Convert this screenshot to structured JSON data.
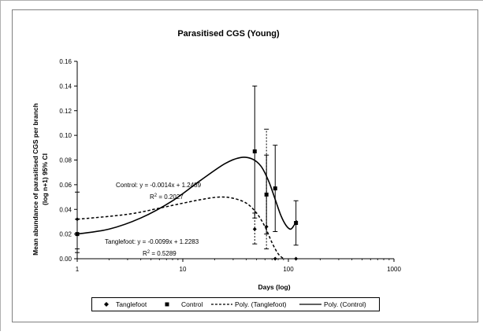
{
  "chart_data": {
    "type": "scatter",
    "title": "Parasitised CGS (Young)",
    "xlabel": "Days (log)",
    "ylabel_line1": "Mean abundance of parasitised CGS per branch",
    "ylabel_line2": "(log n+1) 95% CI",
    "x_scale": "log",
    "xlim": [
      1,
      1000
    ],
    "ylim": [
      0,
      0.16
    ],
    "x_ticks": [
      {
        "value": 1,
        "label": "1"
      },
      {
        "value": 10,
        "label": "10"
      },
      {
        "value": 100,
        "label": "100"
      },
      {
        "value": 1000,
        "label": "1000"
      }
    ],
    "y_ticks": [
      {
        "value": 0,
        "label": "0.00"
      },
      {
        "value": 0.02,
        "label": "0.02"
      },
      {
        "value": 0.04,
        "label": "0.04"
      },
      {
        "value": 0.06,
        "label": "0.06"
      },
      {
        "value": 0.08,
        "label": "0.08"
      },
      {
        "value": 0.1,
        "label": "0.10"
      },
      {
        "value": 0.12,
        "label": "0.12"
      },
      {
        "value": 0.14,
        "label": "0.14"
      },
      {
        "value": 0.16,
        "label": "0.16"
      }
    ],
    "grid": false,
    "legend_position": "bottom",
    "series": [
      {
        "name": "Tanglefoot",
        "marker": "diamond",
        "color": "#000000",
        "points": [
          {
            "x": 1,
            "y": 0.032,
            "lo": 0.008,
            "hi": 0.054
          },
          {
            "x": 48,
            "y": 0.024,
            "lo": 0.012,
            "hi": 0.037
          },
          {
            "x": 62,
            "y": 0.026,
            "lo": 0.008,
            "hi": 0.105
          },
          {
            "x": 75,
            "y": 0.0,
            "lo": 0.0,
            "hi": 0.0
          },
          {
            "x": 118,
            "y": 0.0,
            "lo": 0.0,
            "hi": 0.0
          }
        ]
      },
      {
        "name": "Control",
        "marker": "square",
        "color": "#000000",
        "points": [
          {
            "x": 1,
            "y": 0.02,
            "lo": 0.005,
            "hi": 0.032
          },
          {
            "x": 48,
            "y": 0.087,
            "lo": 0.033,
            "hi": 0.14
          },
          {
            "x": 62,
            "y": 0.052,
            "lo": 0.02,
            "hi": 0.084
          },
          {
            "x": 75,
            "y": 0.057,
            "lo": 0.022,
            "hi": 0.092
          },
          {
            "x": 118,
            "y": 0.029,
            "lo": 0.011,
            "hi": 0.047
          }
        ]
      },
      {
        "name": "Poly. (Tanglefoot)",
        "style": "dashed",
        "color": "#000000",
        "curve": [
          {
            "x": 1,
            "y": 0.032
          },
          {
            "x": 3,
            "y": 0.036
          },
          {
            "x": 6,
            "y": 0.041
          },
          {
            "x": 10,
            "y": 0.045
          },
          {
            "x": 15,
            "y": 0.048
          },
          {
            "x": 22,
            "y": 0.05
          },
          {
            "x": 30,
            "y": 0.049
          },
          {
            "x": 40,
            "y": 0.045
          },
          {
            "x": 50,
            "y": 0.037
          },
          {
            "x": 60,
            "y": 0.026
          },
          {
            "x": 70,
            "y": 0.013
          },
          {
            "x": 80,
            "y": 0.004
          },
          {
            "x": 90,
            "y": 0.0
          }
        ]
      },
      {
        "name": "Poly. (Control)",
        "style": "solid",
        "color": "#000000",
        "curve": [
          {
            "x": 1,
            "y": 0.02
          },
          {
            "x": 2,
            "y": 0.024
          },
          {
            "x": 4,
            "y": 0.033
          },
          {
            "x": 8,
            "y": 0.047
          },
          {
            "x": 15,
            "y": 0.064
          },
          {
            "x": 25,
            "y": 0.077
          },
          {
            "x": 35,
            "y": 0.082
          },
          {
            "x": 45,
            "y": 0.081
          },
          {
            "x": 55,
            "y": 0.075
          },
          {
            "x": 65,
            "y": 0.063
          },
          {
            "x": 75,
            "y": 0.048
          },
          {
            "x": 85,
            "y": 0.035
          },
          {
            "x": 95,
            "y": 0.027
          },
          {
            "x": 105,
            "y": 0.024
          },
          {
            "x": 113,
            "y": 0.027
          },
          {
            "x": 120,
            "y": 0.031
          }
        ]
      }
    ],
    "annotations": [
      {
        "name": "control-equation",
        "text": "Control: y = -0.0014x + 1.2489"
      },
      {
        "name": "control-r2",
        "prefix": "R",
        "sup": "2",
        "suffix": " = 0.2027"
      },
      {
        "name": "tanglefoot-equation",
        "text": "Tanglefoot: y = -0.0099x + 1.2283"
      },
      {
        "name": "tanglefoot-r2",
        "prefix": "R",
        "sup": "2",
        "suffix": " = 0.5289"
      }
    ]
  }
}
